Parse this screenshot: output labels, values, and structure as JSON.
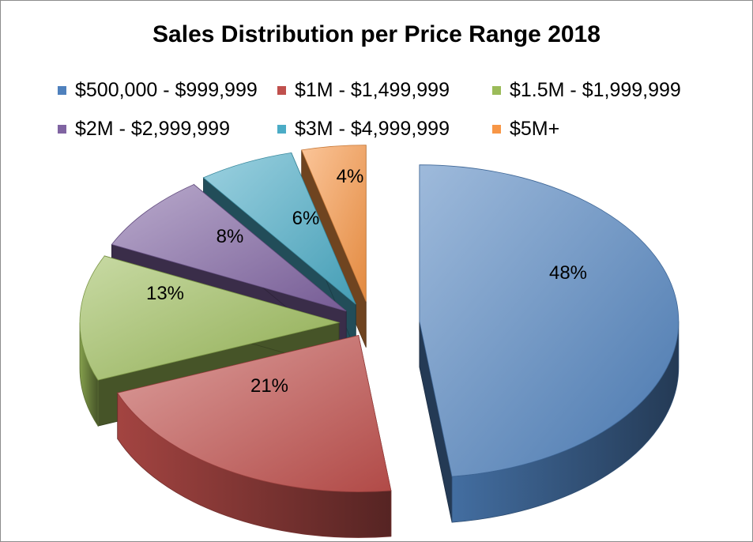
{
  "chart_data": {
    "type": "pie",
    "title": "Sales Distribution per Price Range 2018",
    "legend_position": "top",
    "three_d": true,
    "exploded": true,
    "slices": [
      {
        "label": "$500,000 - $999,999",
        "value": 48,
        "value_label": "48%",
        "color": "#4f81bd"
      },
      {
        "label": "$1M - $1,499,999",
        "value": 21,
        "value_label": "21%",
        "color": "#c0504d"
      },
      {
        "label": "$1.5M - $1,999,999",
        "value": 13,
        "value_label": "13%",
        "color": "#9bbb59"
      },
      {
        "label": "$2M - $2,999,999",
        "value": 8,
        "value_label": "8%",
        "color": "#8064a2"
      },
      {
        "label": "$3M - $4,999,999",
        "value": 6,
        "value_label": "6%",
        "color": "#4bacc6"
      },
      {
        "label": "$5M+",
        "value": 4,
        "value_label": "4%",
        "color": "#f79646"
      }
    ]
  }
}
